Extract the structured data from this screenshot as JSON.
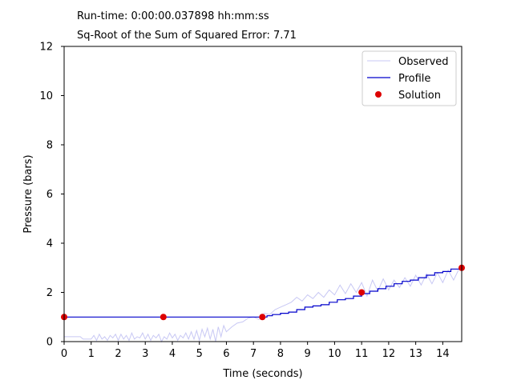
{
  "header": {
    "runtime": "Run-time: 0:00:00.037898 hh:mm:ss",
    "error": "Sq-Root of the Sum of Squared Error: 7.71"
  },
  "chart_data": {
    "type": "line",
    "title": "",
    "xlabel": "Time (seconds)",
    "ylabel": "Pressure (bars)",
    "xlim": [
      0,
      14.7
    ],
    "ylim": [
      0,
      12
    ],
    "xticks": [
      "0",
      "1",
      "2",
      "3",
      "4",
      "5",
      "6",
      "7",
      "8",
      "9",
      "10",
      "11",
      "12",
      "13",
      "14"
    ],
    "yticks": [
      "0",
      "2",
      "4",
      "6",
      "8",
      "10",
      "12"
    ],
    "grid": false,
    "legend_position": "top-right",
    "series": [
      {
        "name": "Observed",
        "type": "line",
        "color": "#c8c8f4",
        "x": [
          0,
          0.6,
          0.7,
          1.0,
          1.1,
          1.2,
          1.3,
          1.4,
          1.5,
          1.6,
          1.7,
          1.8,
          1.9,
          2.0,
          2.1,
          2.2,
          2.3,
          2.4,
          2.5,
          2.6,
          2.7,
          2.8,
          2.9,
          3.0,
          3.1,
          3.2,
          3.3,
          3.4,
          3.5,
          3.6,
          3.7,
          3.8,
          3.9,
          4.0,
          4.1,
          4.2,
          4.3,
          4.4,
          4.5,
          4.6,
          4.7,
          4.8,
          4.9,
          5.0,
          5.1,
          5.2,
          5.3,
          5.4,
          5.5,
          5.6,
          5.7,
          5.8,
          5.9,
          6.0,
          6.2,
          6.4,
          6.6,
          6.8,
          7.0,
          7.2,
          7.4,
          7.6,
          7.8,
          8.0,
          8.2,
          8.4,
          8.6,
          8.8,
          9.0,
          9.2,
          9.4,
          9.6,
          9.8,
          10.0,
          10.2,
          10.4,
          10.6,
          10.8,
          11.0,
          11.2,
          11.4,
          11.6,
          11.8,
          12.0,
          12.2,
          12.4,
          12.6,
          12.8,
          13.0,
          13.2,
          13.4,
          13.6,
          13.8,
          14.0,
          14.2,
          14.4,
          14.6,
          14.7
        ],
        "y": [
          0.2,
          0.2,
          0.1,
          0.1,
          0.25,
          0.05,
          0.3,
          0.1,
          0.2,
          0.05,
          0.25,
          0.15,
          0.3,
          0.05,
          0.3,
          0.1,
          0.25,
          0.05,
          0.35,
          0.1,
          0.2,
          0.15,
          0.35,
          0.1,
          0.3,
          0.05,
          0.25,
          0.15,
          0.3,
          0.0,
          0.2,
          0.1,
          0.35,
          0.15,
          0.3,
          0.05,
          0.25,
          0.15,
          0.35,
          0.1,
          0.4,
          0.1,
          0.45,
          0.05,
          0.5,
          0.2,
          0.55,
          0.1,
          0.5,
          0.0,
          0.6,
          0.2,
          0.65,
          0.4,
          0.6,
          0.75,
          0.8,
          0.95,
          1.0,
          0.9,
          1.15,
          1.1,
          1.3,
          1.4,
          1.5,
          1.6,
          1.8,
          1.65,
          1.9,
          1.75,
          2.0,
          1.8,
          2.1,
          1.9,
          2.3,
          1.95,
          2.35,
          2.0,
          2.4,
          1.85,
          2.5,
          2.05,
          2.55,
          2.1,
          2.5,
          2.2,
          2.6,
          2.25,
          2.7,
          2.3,
          2.75,
          2.35,
          2.8,
          2.4,
          2.9,
          2.5,
          2.95,
          3.0
        ]
      },
      {
        "name": "Profile",
        "type": "step",
        "color": "#0000cc",
        "x": [
          0,
          7.3,
          7.5,
          7.7,
          8.0,
          8.3,
          8.6,
          8.9,
          9.2,
          9.5,
          9.8,
          10.1,
          10.4,
          10.7,
          11.0,
          11.3,
          11.6,
          11.9,
          12.2,
          12.5,
          12.8,
          13.1,
          13.4,
          13.7,
          14.0,
          14.3,
          14.7
        ],
        "y": [
          1.0,
          1.0,
          1.05,
          1.1,
          1.15,
          1.2,
          1.3,
          1.4,
          1.45,
          1.5,
          1.6,
          1.7,
          1.75,
          1.85,
          1.95,
          2.05,
          2.15,
          2.25,
          2.35,
          2.45,
          2.5,
          2.6,
          2.7,
          2.8,
          2.85,
          2.95,
          3.0
        ]
      },
      {
        "name": "Solution",
        "type": "scatter",
        "color": "#dd0000",
        "x": [
          0,
          3.67,
          7.33,
          11.0,
          14.7
        ],
        "y": [
          1.0,
          1.0,
          1.0,
          2.0,
          3.0
        ]
      }
    ]
  }
}
